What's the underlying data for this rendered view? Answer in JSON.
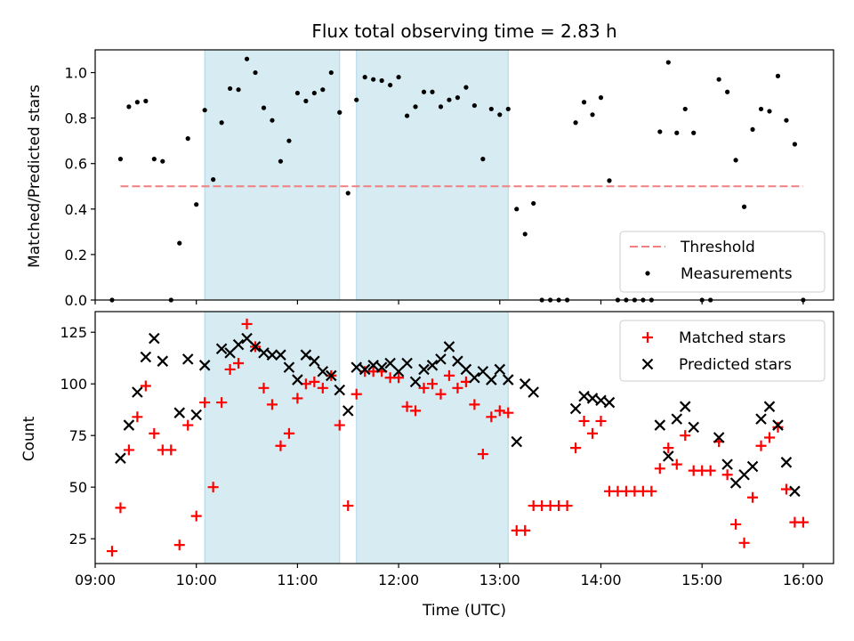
{
  "chart_data": [
    {
      "type": "scatter",
      "title": "Flux total observing time = 2.83 h",
      "ylabel": "Matched/Predicted stars",
      "xlabel": "",
      "x_unit": "Time (UTC)",
      "xlim": [
        "09:00",
        "16:18"
      ],
      "ylim": [
        0,
        1.1
      ],
      "yticks": [
        "0.0",
        "0.2",
        "0.4",
        "0.6",
        "0.8",
        "1.0"
      ],
      "threshold": {
        "name": "Threshold",
        "value": 0.5,
        "x_start": "09:15",
        "x_end": "16:00",
        "color": "#f08080",
        "style": "dashed"
      },
      "shaded_intervals": [
        [
          "10:05",
          "11:25"
        ],
        [
          "11:35",
          "13:05"
        ]
      ],
      "shade_color": "#add8e6",
      "legend": {
        "position": "lower-right",
        "entries": [
          "Threshold",
          "Measurements"
        ]
      },
      "series": [
        {
          "name": "Measurements",
          "marker": "dot",
          "color": "#000000",
          "points": [
            [
              "09:10",
              0.0
            ],
            [
              "09:15",
              0.62
            ],
            [
              "09:20",
              0.85
            ],
            [
              "09:25",
              0.87
            ],
            [
              "09:30",
              0.875
            ],
            [
              "09:35",
              0.62
            ],
            [
              "09:40",
              0.61
            ],
            [
              "09:45",
              0.0
            ],
            [
              "09:50",
              0.25
            ],
            [
              "09:55",
              0.71
            ],
            [
              "10:00",
              0.42
            ],
            [
              "10:05",
              0.835
            ],
            [
              "10:10",
              0.53
            ],
            [
              "10:15",
              0.78
            ],
            [
              "10:20",
              0.93
            ],
            [
              "10:25",
              0.925
            ],
            [
              "10:30",
              1.06
            ],
            [
              "10:35",
              1.0
            ],
            [
              "10:40",
              0.845
            ],
            [
              "10:45",
              0.79
            ],
            [
              "10:50",
              0.61
            ],
            [
              "10:55",
              0.7
            ],
            [
              "11:00",
              0.91
            ],
            [
              "11:05",
              0.875
            ],
            [
              "11:10",
              0.91
            ],
            [
              "11:15",
              0.925
            ],
            [
              "11:20",
              1.0
            ],
            [
              "11:25",
              0.825
            ],
            [
              "11:30",
              0.47
            ],
            [
              "11:35",
              0.88
            ],
            [
              "11:40",
              0.98
            ],
            [
              "11:45",
              0.97
            ],
            [
              "11:50",
              0.965
            ],
            [
              "11:55",
              0.945
            ],
            [
              "12:00",
              0.98
            ],
            [
              "12:05",
              0.81
            ],
            [
              "12:10",
              0.85
            ],
            [
              "12:15",
              0.915
            ],
            [
              "12:20",
              0.915
            ],
            [
              "12:25",
              0.85
            ],
            [
              "12:30",
              0.88
            ],
            [
              "12:35",
              0.89
            ],
            [
              "12:40",
              0.935
            ],
            [
              "12:45",
              0.855
            ],
            [
              "12:50",
              0.62
            ],
            [
              "12:55",
              0.84
            ],
            [
              "13:00",
              0.815
            ],
            [
              "13:05",
              0.84
            ],
            [
              "13:10",
              0.4
            ],
            [
              "13:15",
              0.29
            ],
            [
              "13:20",
              0.425
            ],
            [
              "13:25",
              0.0
            ],
            [
              "13:30",
              0.0
            ],
            [
              "13:35",
              0.0
            ],
            [
              "13:40",
              0.0
            ],
            [
              "13:45",
              0.78
            ],
            [
              "13:50",
              0.87
            ],
            [
              "13:55",
              0.815
            ],
            [
              "14:00",
              0.89
            ],
            [
              "14:05",
              0.525
            ],
            [
              "14:10",
              0.0
            ],
            [
              "14:15",
              0.0
            ],
            [
              "14:20",
              0.0
            ],
            [
              "14:25",
              0.0
            ],
            [
              "14:30",
              0.0
            ],
            [
              "14:35",
              0.74
            ],
            [
              "14:40",
              1.045
            ],
            [
              "14:45",
              0.735
            ],
            [
              "14:50",
              0.84
            ],
            [
              "14:55",
              0.735
            ],
            [
              "15:00",
              0.0
            ],
            [
              "15:05",
              0.0
            ],
            [
              "15:10",
              0.97
            ],
            [
              "15:15",
              0.915
            ],
            [
              "15:20",
              0.615
            ],
            [
              "15:25",
              0.41
            ],
            [
              "15:30",
              0.75
            ],
            [
              "15:35",
              0.84
            ],
            [
              "15:40",
              0.83
            ],
            [
              "15:45",
              0.985
            ],
            [
              "15:50",
              0.79
            ],
            [
              "15:55",
              0.685
            ],
            [
              "16:00",
              0.0
            ]
          ]
        }
      ]
    },
    {
      "type": "scatter",
      "title": "",
      "ylabel": "Count",
      "xlabel": "Time (UTC)",
      "xlim": [
        "09:00",
        "16:18"
      ],
      "ylim": [
        13,
        135
      ],
      "yticks": [
        "25",
        "50",
        "75",
        "100",
        "125"
      ],
      "xticks": [
        "09:00",
        "10:00",
        "11:00",
        "12:00",
        "13:00",
        "14:00",
        "15:00",
        "16:00"
      ],
      "shaded_intervals": [
        [
          "10:05",
          "11:25"
        ],
        [
          "11:35",
          "13:05"
        ]
      ],
      "shade_color": "#add8e6",
      "legend": {
        "position": "upper-right",
        "entries": [
          "Matched stars",
          "Predicted stars"
        ]
      },
      "series": [
        {
          "name": "Matched stars",
          "marker": "plus",
          "color": "#ff0000",
          "points": [
            [
              "09:10",
              19
            ],
            [
              "09:15",
              40
            ],
            [
              "09:20",
              68
            ],
            [
              "09:25",
              84
            ],
            [
              "09:30",
              99
            ],
            [
              "09:35",
              76
            ],
            [
              "09:40",
              68
            ],
            [
              "09:45",
              68
            ],
            [
              "09:50",
              22
            ],
            [
              "09:55",
              80
            ],
            [
              "10:00",
              36
            ],
            [
              "10:05",
              91
            ],
            [
              "10:10",
              50
            ],
            [
              "10:15",
              91
            ],
            [
              "10:20",
              107
            ],
            [
              "10:25",
              110
            ],
            [
              "10:30",
              129
            ],
            [
              "10:35",
              118
            ],
            [
              "10:40",
              98
            ],
            [
              "10:45",
              90
            ],
            [
              "10:50",
              70
            ],
            [
              "10:55",
              76
            ],
            [
              "11:00",
              93
            ],
            [
              "11:05",
              100
            ],
            [
              "11:10",
              101
            ],
            [
              "11:15",
              98
            ],
            [
              "11:20",
              104
            ],
            [
              "11:25",
              80
            ],
            [
              "11:30",
              41
            ],
            [
              "11:35",
              95
            ],
            [
              "11:40",
              106
            ],
            [
              "11:45",
              106
            ],
            [
              "11:50",
              106
            ],
            [
              "11:55",
              103
            ],
            [
              "12:00",
              103
            ],
            [
              "12:05",
              89
            ],
            [
              "12:10",
              87
            ],
            [
              "12:15",
              98
            ],
            [
              "12:20",
              100
            ],
            [
              "12:25",
              95
            ],
            [
              "12:30",
              104
            ],
            [
              "12:35",
              98
            ],
            [
              "12:40",
              101
            ],
            [
              "12:45",
              90
            ],
            [
              "12:50",
              66
            ],
            [
              "12:55",
              84
            ],
            [
              "13:00",
              87
            ],
            [
              "13:05",
              86
            ],
            [
              "13:10",
              29
            ],
            [
              "13:15",
              29
            ],
            [
              "13:20",
              41
            ],
            [
              "13:25",
              41
            ],
            [
              "13:30",
              41
            ],
            [
              "13:35",
              41
            ],
            [
              "13:40",
              41
            ],
            [
              "13:45",
              69
            ],
            [
              "13:50",
              82
            ],
            [
              "13:55",
              76
            ],
            [
              "14:00",
              82
            ],
            [
              "14:05",
              48
            ],
            [
              "14:10",
              48
            ],
            [
              "14:15",
              48
            ],
            [
              "14:20",
              48
            ],
            [
              "14:25",
              48
            ],
            [
              "14:30",
              48
            ],
            [
              "14:35",
              59
            ],
            [
              "14:40",
              69
            ],
            [
              "14:45",
              61
            ],
            [
              "14:50",
              75
            ],
            [
              "14:55",
              58
            ],
            [
              "15:00",
              58
            ],
            [
              "15:05",
              58
            ],
            [
              "15:10",
              72
            ],
            [
              "15:15",
              56
            ],
            [
              "15:20",
              32
            ],
            [
              "15:25",
              23
            ],
            [
              "15:30",
              45
            ],
            [
              "15:35",
              70
            ],
            [
              "15:40",
              74
            ],
            [
              "15:45",
              79
            ],
            [
              "15:50",
              49
            ],
            [
              "15:55",
              33
            ],
            [
              "16:00",
              33
            ]
          ]
        },
        {
          "name": "Predicted stars",
          "marker": "cross",
          "color": "#000000",
          "points": [
            [
              "09:15",
              64
            ],
            [
              "09:20",
              80
            ],
            [
              "09:25",
              96
            ],
            [
              "09:30",
              113
            ],
            [
              "09:35",
              122
            ],
            [
              "09:40",
              111
            ],
            [
              "09:50",
              86
            ],
            [
              "09:55",
              112
            ],
            [
              "10:00",
              85
            ],
            [
              "10:05",
              109
            ],
            [
              "10:15",
              117
            ],
            [
              "10:20",
              115
            ],
            [
              "10:25",
              119
            ],
            [
              "10:30",
              122
            ],
            [
              "10:35",
              118
            ],
            [
              "10:40",
              115
            ],
            [
              "10:45",
              114
            ],
            [
              "10:50",
              114
            ],
            [
              "10:55",
              108
            ],
            [
              "11:00",
              102
            ],
            [
              "11:05",
              114
            ],
            [
              "11:10",
              111
            ],
            [
              "11:15",
              106
            ],
            [
              "11:20",
              104
            ],
            [
              "11:25",
              97
            ],
            [
              "11:30",
              87
            ],
            [
              "11:35",
              108
            ],
            [
              "11:40",
              107
            ],
            [
              "11:45",
              109
            ],
            [
              "11:50",
              108
            ],
            [
              "11:55",
              110
            ],
            [
              "12:00",
              106
            ],
            [
              "12:05",
              110
            ],
            [
              "12:10",
              101
            ],
            [
              "12:15",
              107
            ],
            [
              "12:20",
              109
            ],
            [
              "12:25",
              112
            ],
            [
              "12:30",
              118
            ],
            [
              "12:35",
              111
            ],
            [
              "12:40",
              107
            ],
            [
              "12:45",
              103
            ],
            [
              "12:50",
              106
            ],
            [
              "12:55",
              102
            ],
            [
              "13:00",
              107
            ],
            [
              "13:05",
              102
            ],
            [
              "13:10",
              72
            ],
            [
              "13:15",
              100
            ],
            [
              "13:20",
              96
            ],
            [
              "13:45",
              88
            ],
            [
              "13:50",
              94
            ],
            [
              "13:55",
              93
            ],
            [
              "14:00",
              92
            ],
            [
              "14:05",
              91
            ],
            [
              "14:35",
              80
            ],
            [
              "14:40",
              65
            ],
            [
              "14:45",
              83
            ],
            [
              "14:50",
              89
            ],
            [
              "14:55",
              79
            ],
            [
              "15:10",
              74
            ],
            [
              "15:15",
              61
            ],
            [
              "15:20",
              52
            ],
            [
              "15:25",
              56
            ],
            [
              "15:30",
              60
            ],
            [
              "15:35",
              83
            ],
            [
              "15:40",
              89
            ],
            [
              "15:45",
              80
            ],
            [
              "15:50",
              62
            ],
            [
              "15:55",
              48
            ]
          ]
        }
      ]
    }
  ]
}
